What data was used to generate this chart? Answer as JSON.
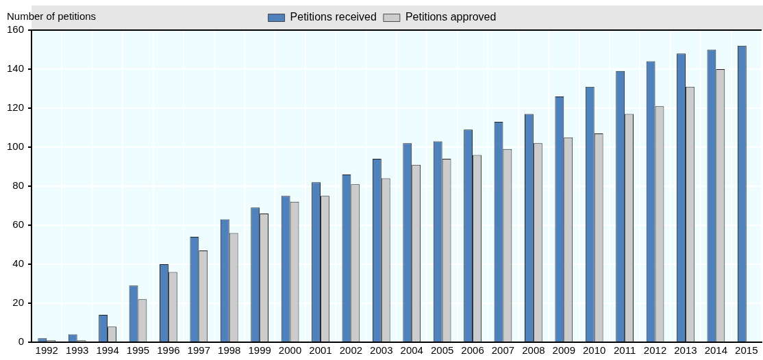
{
  "chart_data": {
    "type": "bar",
    "ylabel": "Number of petitions",
    "categories": [
      "1992",
      "1993",
      "1994",
      "1995",
      "1996",
      "1997",
      "1998",
      "1999",
      "2000",
      "2001",
      "2002",
      "2003",
      "2004",
      "2005",
      "2006",
      "2007",
      "2008",
      "2009",
      "2010",
      "2011",
      "2012",
      "2013",
      "2014",
      "2015"
    ],
    "series": [
      {
        "name": "Petitions received",
        "color": "#4f81bd",
        "values": [
          2,
          4,
          14,
          29,
          40,
          54,
          63,
          69,
          75,
          82,
          86,
          94,
          102,
          103,
          109,
          113,
          117,
          126,
          131,
          139,
          144,
          148,
          150,
          152
        ]
      },
      {
        "name": "Petitions approved",
        "color": "#cccccc",
        "values": [
          1,
          1,
          8,
          22,
          36,
          47,
          56,
          66,
          72,
          75,
          81,
          84,
          91,
          94,
          96,
          99,
          102,
          105,
          107,
          117,
          121,
          131,
          140,
          null
        ]
      }
    ],
    "ylim": [
      0,
      160
    ],
    "yticks": [
      0,
      20,
      40,
      60,
      80,
      100,
      120,
      140,
      160
    ],
    "grid": true,
    "legend": "top"
  }
}
